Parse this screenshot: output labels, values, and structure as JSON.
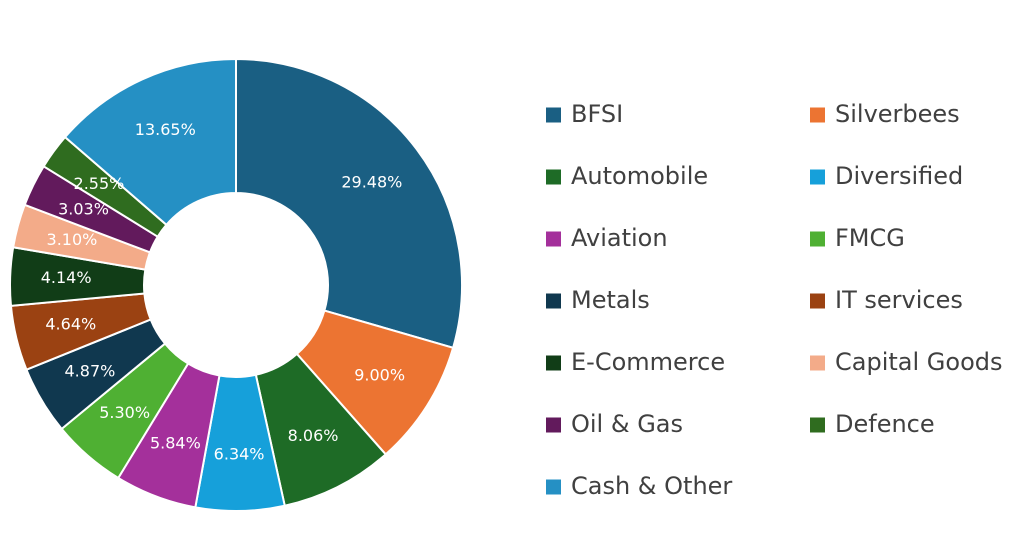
{
  "chart_data": {
    "type": "pie",
    "donut": true,
    "legend_position": "right",
    "slices": [
      {
        "label": "BFSI",
        "value": 29.48,
        "value_label": "29.48%",
        "color": "#1a5f83"
      },
      {
        "label": "Silverbees",
        "value": 9.0,
        "value_label": "9.00%",
        "color": "#ec7432"
      },
      {
        "label": "Automobile",
        "value": 8.06,
        "value_label": "8.06%",
        "color": "#1e6b26"
      },
      {
        "label": "Diversified",
        "value": 6.34,
        "value_label": "6.34%",
        "color": "#16a0da"
      },
      {
        "label": "Aviation",
        "value": 5.84,
        "value_label": "5.84%",
        "color": "#a4309b"
      },
      {
        "label": "FMCG",
        "value": 5.3,
        "value_label": "5.30%",
        "color": "#4fb033"
      },
      {
        "label": "Metals",
        "value": 4.87,
        "value_label": "4.87%",
        "color": "#10384f"
      },
      {
        "label": "IT services",
        "value": 4.64,
        "value_label": "4.64%",
        "color": "#9b4212"
      },
      {
        "label": "E-Commerce",
        "value": 4.14,
        "value_label": "4.14%",
        "color": "#113d17"
      },
      {
        "label": "Capital Goods",
        "value": 3.1,
        "value_label": "3.10%",
        "color": "#f3ab89"
      },
      {
        "label": "Oil & Gas",
        "value": 3.03,
        "value_label": "3.03%",
        "color": "#621a5c"
      },
      {
        "label": "Defence",
        "value": 2.55,
        "value_label": "2.55%",
        "color": "#2f6c1f"
      },
      {
        "label": "Cash & Other",
        "value": 13.65,
        "value_label": "13.65%",
        "color": "#2590c4"
      }
    ]
  }
}
